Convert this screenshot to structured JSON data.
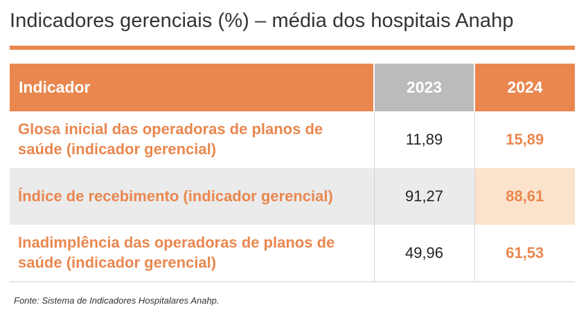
{
  "title": "Indicadores gerenciais (%) – média dos hospitais Anahp",
  "chart_data": {
    "type": "table",
    "columns": [
      "Indicador",
      "2023",
      "2024"
    ],
    "rows": [
      {
        "indicador": "Glosa inicial das operadoras de planos de saúde (indicador gerencial)",
        "v2023": "11,89",
        "v2024": "15,89"
      },
      {
        "indicador": "Índice de recebimento (indicador gerencial)",
        "v2023": "91,27",
        "v2024": "88,61"
      },
      {
        "indicador": "Inadimplência das operadoras de planos de saúde (indicador gerencial)",
        "v2023": "49,96",
        "v2024": "61,53"
      }
    ]
  },
  "source": "Fonte: Sistema de Indicadores Hospitalares Anahp.",
  "colors": {
    "accent": "#e9874f",
    "header_2023": "#bbbbbb",
    "highlight_row": "#ebebeb",
    "highlight_cell": "#fbe3cc"
  }
}
